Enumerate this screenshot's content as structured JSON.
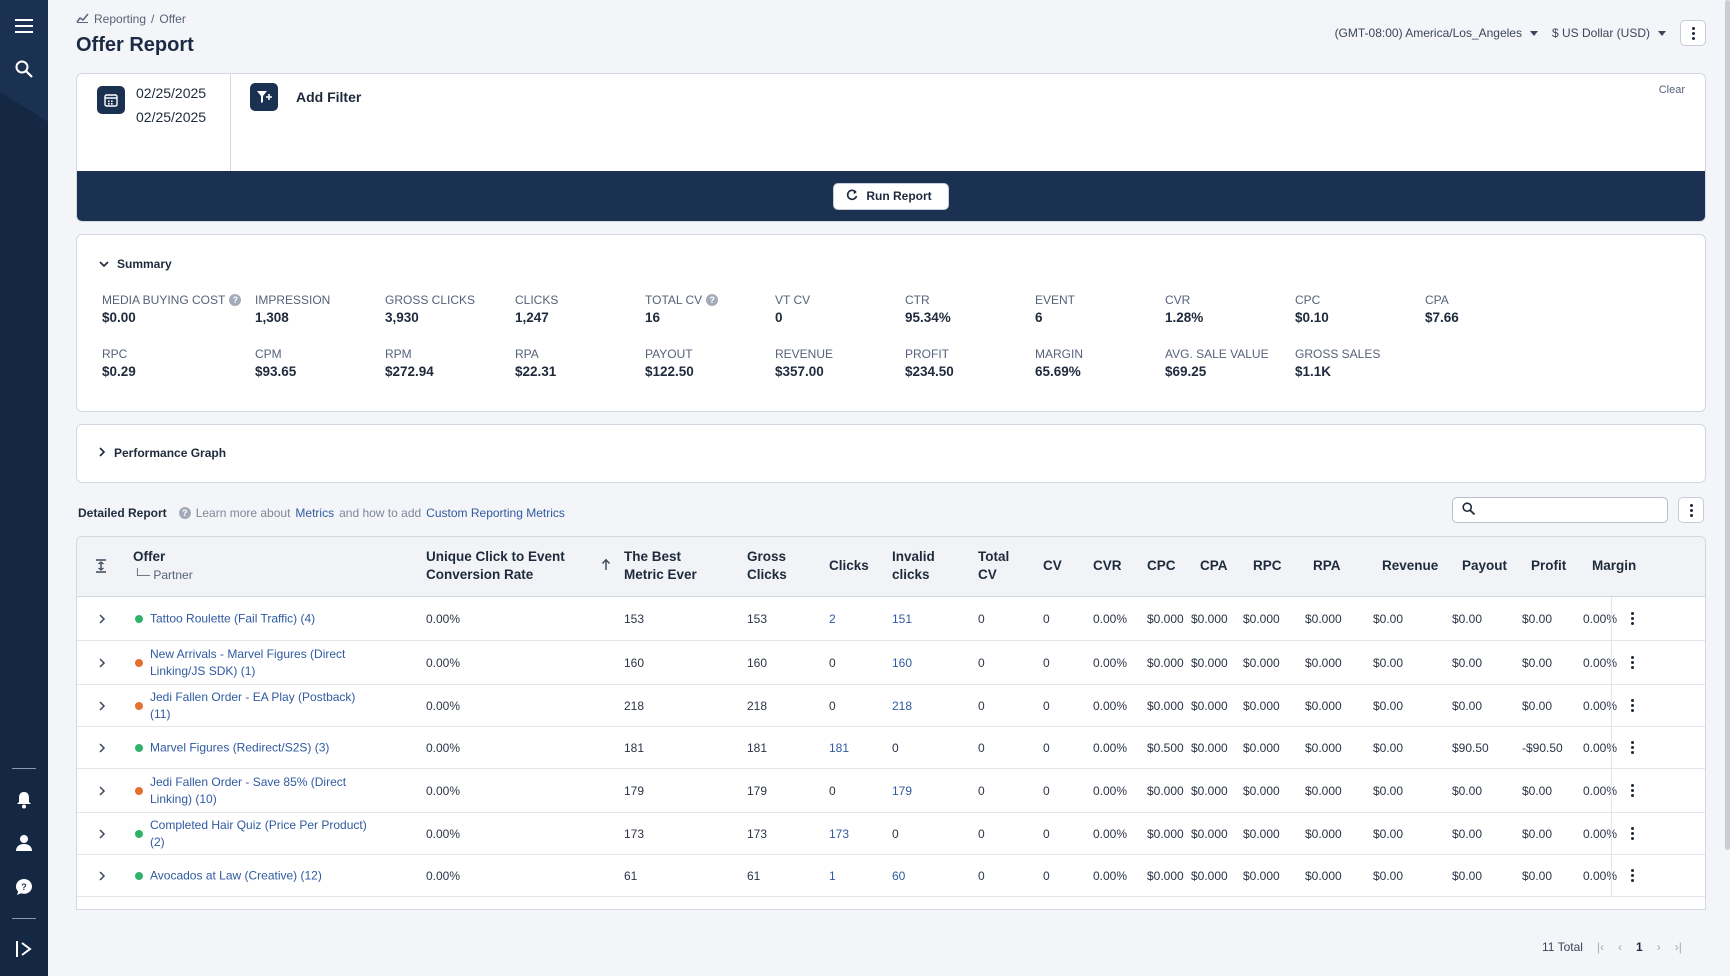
{
  "breadcrumb": {
    "root": "Reporting",
    "separator": "/",
    "current": "Offer"
  },
  "page_title": "Offer Report",
  "timezone": "(GMT-08:00) America/Los_Angeles",
  "currency": "$ US Dollar (USD)",
  "filters": {
    "date_start": "02/25/2025",
    "date_end": "02/25/2025",
    "add_filter_label": "Add Filter",
    "clear_label": "Clear",
    "run_label": "Run Report"
  },
  "summary": {
    "title": "Summary",
    "metrics": [
      {
        "label": "MEDIA BUYING COST",
        "value": "$0.00"
      },
      {
        "label": "IMPRESSION",
        "value": "1,308"
      },
      {
        "label": "GROSS CLICKS",
        "value": "3,930"
      },
      {
        "label": "CLICKS",
        "value": "1,247"
      },
      {
        "label": "TOTAL CV",
        "value": "16"
      },
      {
        "label": "VT CV",
        "value": "0"
      },
      {
        "label": "CTR",
        "value": "95.34%"
      },
      {
        "label": "EVENT",
        "value": "6"
      },
      {
        "label": "CVR",
        "value": "1.28%"
      },
      {
        "label": "CPC",
        "value": "$0.10"
      },
      {
        "label": "CPA",
        "value": "$7.66"
      },
      {
        "label": "RPC",
        "value": "$0.29"
      },
      {
        "label": "CPM",
        "value": "$93.65"
      },
      {
        "label": "RPM",
        "value": "$272.94"
      },
      {
        "label": "RPA",
        "value": "$22.31"
      },
      {
        "label": "PAYOUT",
        "value": "$122.50"
      },
      {
        "label": "REVENUE",
        "value": "$357.00"
      },
      {
        "label": "PROFIT",
        "value": "$234.50"
      },
      {
        "label": "MARGIN",
        "value": "65.69%"
      },
      {
        "label": "AVG. SALE VALUE",
        "value": "$69.25"
      },
      {
        "label": "GROSS SALES",
        "value": "$1.1K"
      }
    ]
  },
  "performance_graph": {
    "title": "Performance Graph"
  },
  "detailed_report": {
    "title": "Detailed Report",
    "learn_prefix": "Learn more about",
    "metrics_link": "Metrics",
    "learn_middle": "and how to add",
    "custom_link": "Custom Reporting Metrics",
    "search_placeholder": ""
  },
  "table": {
    "headers": {
      "offer": "Offer",
      "partner": "Partner",
      "ucecr": "Unique Click to Event Conversion Rate",
      "best": "The Best Metric Ever",
      "gross": "Gross Clicks",
      "clicks": "Clicks",
      "invalid": "Invalid clicks",
      "totalcv": "Total CV",
      "cv": "CV",
      "cvr": "CVR",
      "cpc": "CPC",
      "cpa": "CPA",
      "rpc": "RPC",
      "rpa": "RPA",
      "revenue": "Revenue",
      "payout": "Payout",
      "profit": "Profit",
      "margin": "Margin"
    },
    "rows": [
      {
        "offer": "Tattoo Roulette (Fail Traffic) (4)",
        "status": "#2fb36a",
        "ucecr": "0.00%",
        "best": "153",
        "gross": "153",
        "clicks": "2",
        "invalid": "151",
        "totalcv": "0",
        "cv": "0",
        "cvr": "0.00%",
        "cpc": "$0.000",
        "cpa": "$0.000",
        "rpc": "$0.000",
        "rpa": "$0.000",
        "revenue": "$0.00",
        "payout": "$0.00",
        "profit": "$0.00",
        "margin": "0.00%"
      },
      {
        "offer": "New Arrivals - Marvel Figures (Direct Linking/JS SDK) (1)",
        "status": "#e5702f",
        "ucecr": "0.00%",
        "best": "160",
        "gross": "160",
        "clicks": "0",
        "invalid": "160",
        "totalcv": "0",
        "cv": "0",
        "cvr": "0.00%",
        "cpc": "$0.000",
        "cpa": "$0.000",
        "rpc": "$0.000",
        "rpa": "$0.000",
        "revenue": "$0.00",
        "payout": "$0.00",
        "profit": "$0.00",
        "margin": "0.00%"
      },
      {
        "offer": "Jedi Fallen Order - EA Play (Postback) (11)",
        "status": "#e5702f",
        "ucecr": "0.00%",
        "best": "218",
        "gross": "218",
        "clicks": "0",
        "invalid": "218",
        "totalcv": "0",
        "cv": "0",
        "cvr": "0.00%",
        "cpc": "$0.000",
        "cpa": "$0.000",
        "rpc": "$0.000",
        "rpa": "$0.000",
        "revenue": "$0.00",
        "payout": "$0.00",
        "profit": "$0.00",
        "margin": "0.00%"
      },
      {
        "offer": "Marvel Figures (Redirect/S2S) (3)",
        "status": "#2fb36a",
        "ucecr": "0.00%",
        "best": "181",
        "gross": "181",
        "clicks": "181",
        "invalid": "0",
        "totalcv": "0",
        "cv": "0",
        "cvr": "0.00%",
        "cpc": "$0.500",
        "cpa": "$0.000",
        "rpc": "$0.000",
        "rpa": "$0.000",
        "revenue": "$0.00",
        "payout": "$90.50",
        "profit": "-$90.50",
        "margin": "0.00%"
      },
      {
        "offer": "Jedi Fallen Order - Save 85% (Direct Linking) (10)",
        "status": "#e5702f",
        "ucecr": "0.00%",
        "best": "179",
        "gross": "179",
        "clicks": "0",
        "invalid": "179",
        "totalcv": "0",
        "cv": "0",
        "cvr": "0.00%",
        "cpc": "$0.000",
        "cpa": "$0.000",
        "rpc": "$0.000",
        "rpa": "$0.000",
        "revenue": "$0.00",
        "payout": "$0.00",
        "profit": "$0.00",
        "margin": "0.00%"
      },
      {
        "offer": "Completed Hair Quiz (Price Per Product) (2)",
        "status": "#2fb36a",
        "ucecr": "0.00%",
        "best": "173",
        "gross": "173",
        "clicks": "173",
        "invalid": "0",
        "totalcv": "0",
        "cv": "0",
        "cvr": "0.00%",
        "cpc": "$0.000",
        "cpa": "$0.000",
        "rpc": "$0.000",
        "rpa": "$0.000",
        "revenue": "$0.00",
        "payout": "$0.00",
        "profit": "$0.00",
        "margin": "0.00%"
      },
      {
        "offer": "Avocados at Law (Creative) (12)",
        "status": "#2fb36a",
        "ucecr": "0.00%",
        "best": "61",
        "gross": "61",
        "clicks": "1",
        "invalid": "60",
        "totalcv": "0",
        "cv": "0",
        "cvr": "0.00%",
        "cpc": "$0.000",
        "cpa": "$0.000",
        "rpc": "$0.000",
        "rpa": "$0.000",
        "revenue": "$0.00",
        "payout": "$0.00",
        "profit": "$0.00",
        "margin": "0.00%"
      }
    ]
  },
  "pagination": {
    "total": "11 Total",
    "page": "1"
  }
}
